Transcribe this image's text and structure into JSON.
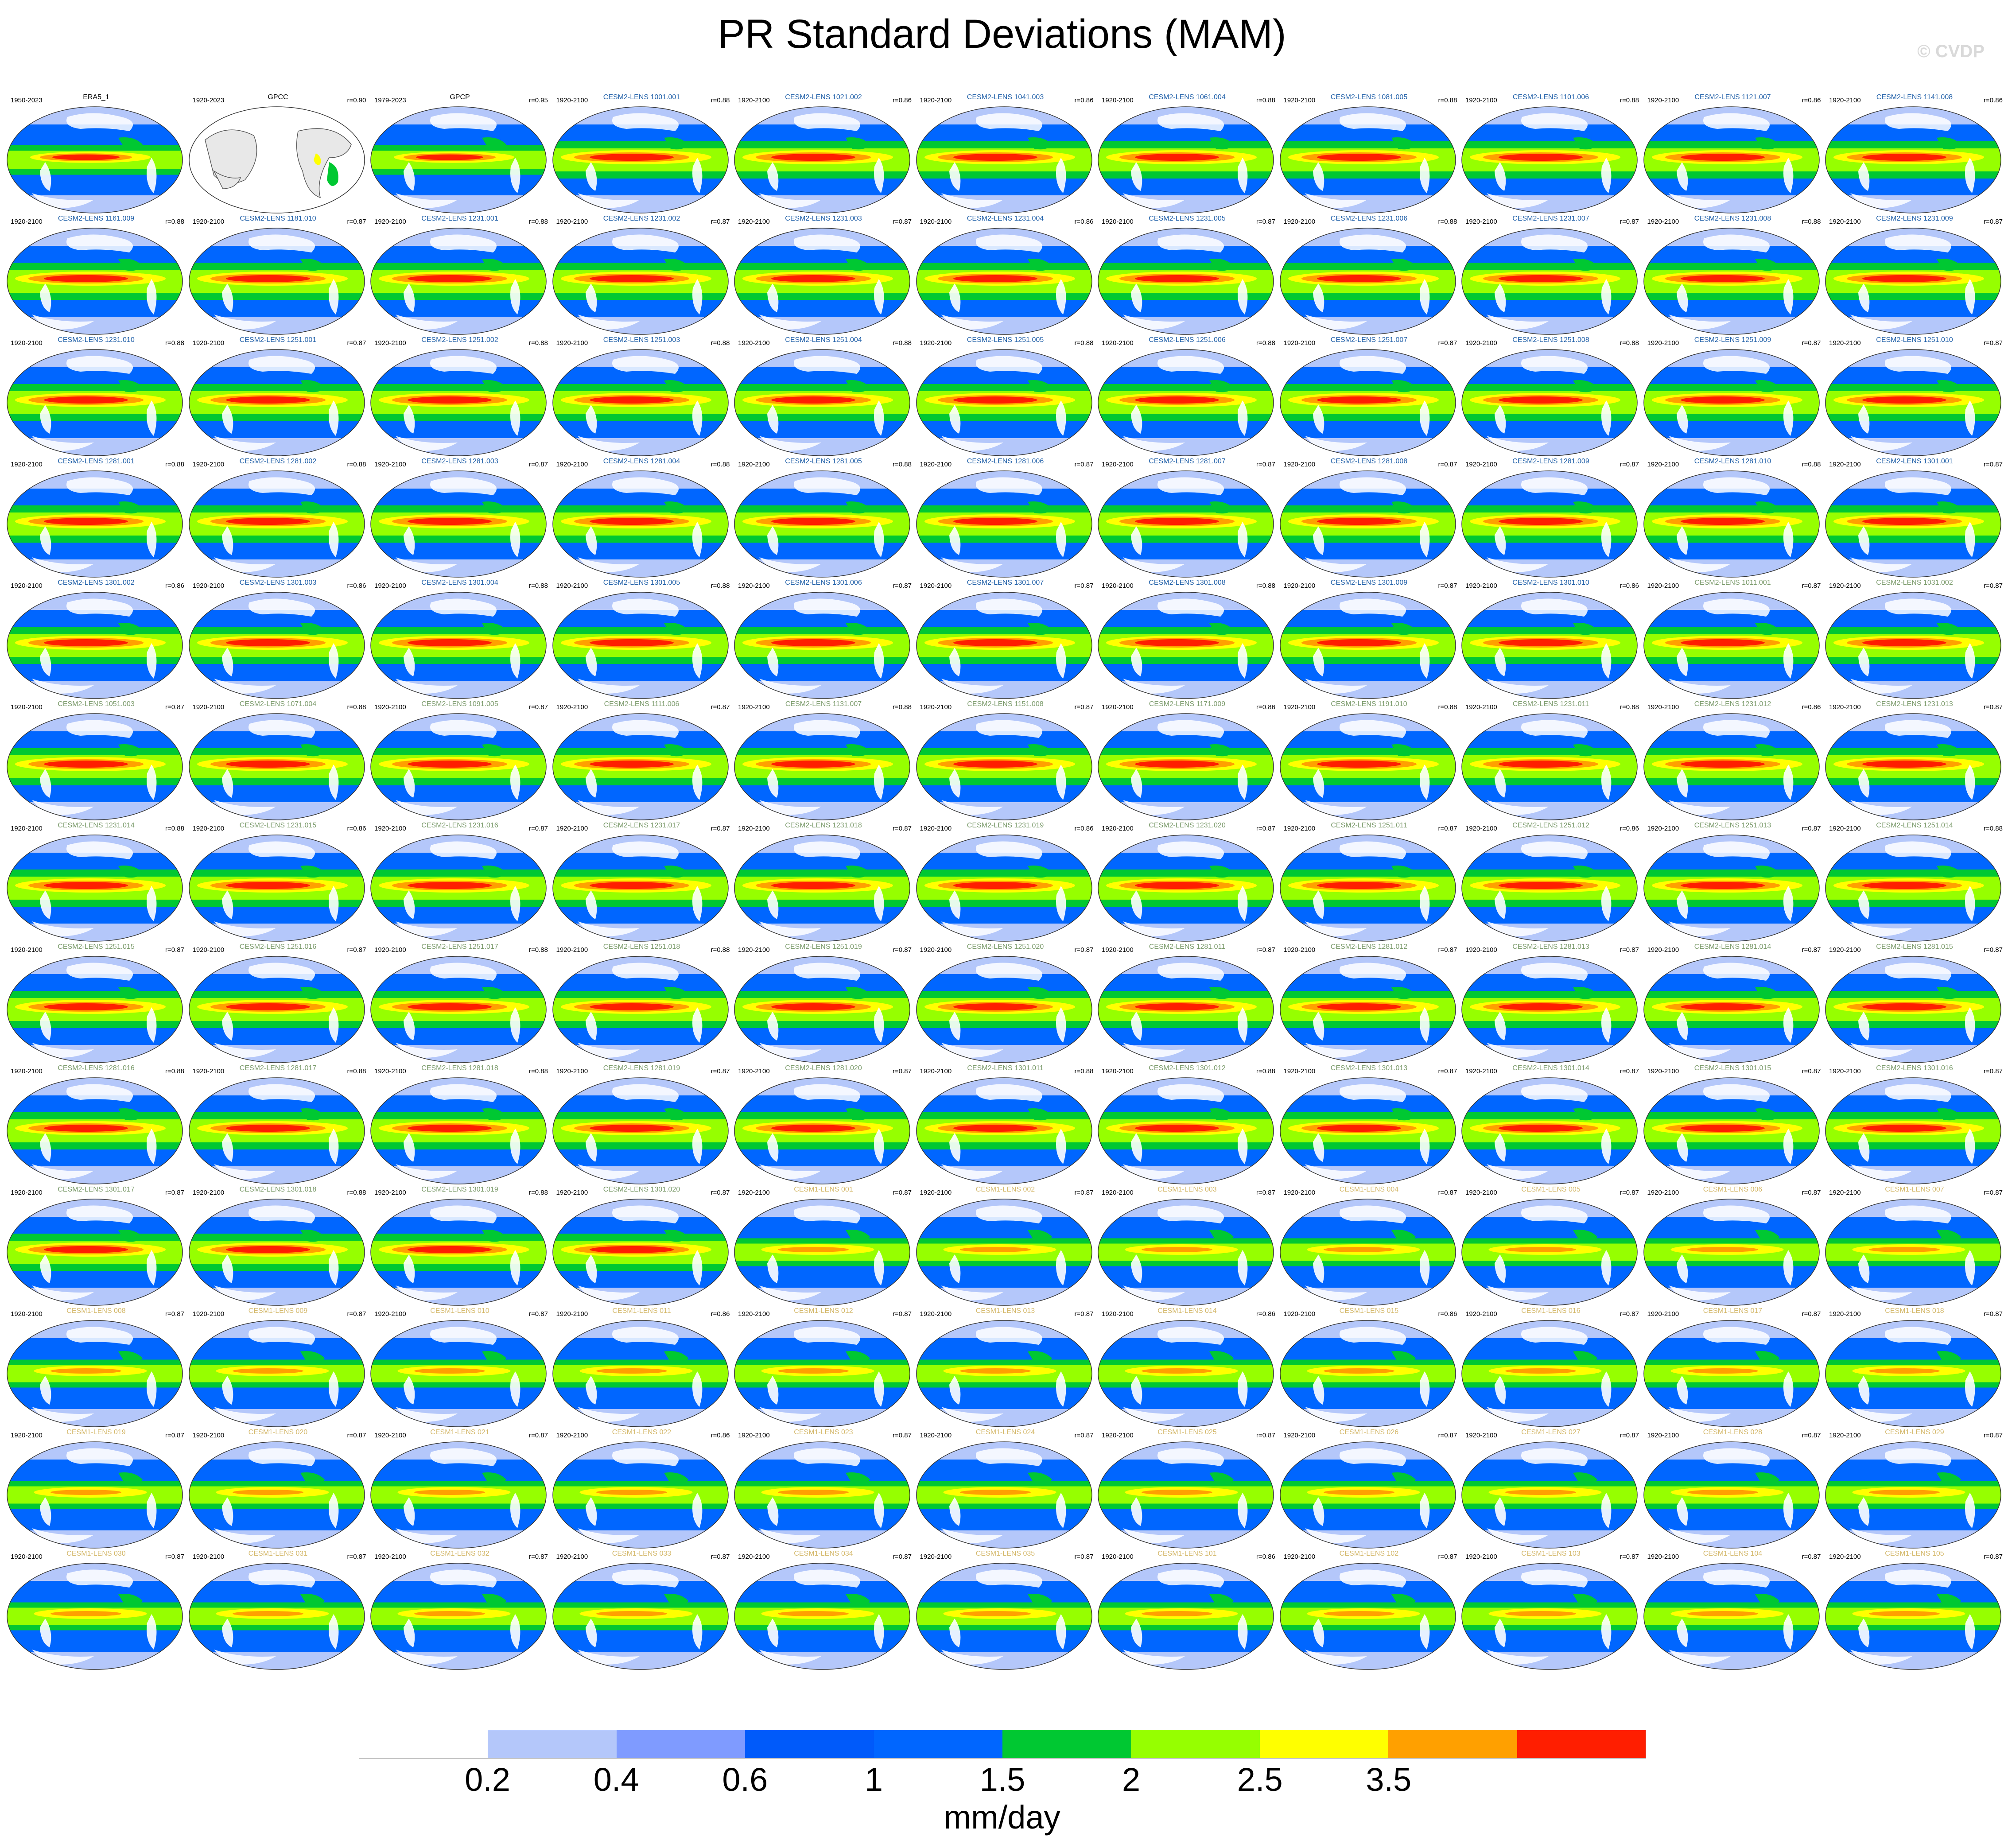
{
  "title": "PR Standard Deviations (MAM)",
  "watermark": "© CVDP",
  "colorbar": {
    "colors": [
      "#ffffff",
      "#b4c7fa",
      "#7f9bff",
      "#005afa",
      "#0066ff",
      "#00c832",
      "#96ff00",
      "#ffff00",
      "#ffa000",
      "#ff1e00"
    ],
    "ticks": [
      "0.2",
      "0.4",
      "0.6",
      "1",
      "1.5",
      "2",
      "2.5",
      "3.5"
    ],
    "units": "mm/day"
  },
  "map_colors": {
    "land": "#ffffff",
    "ocean_low": "#b4c7fa",
    "blue": "#0066ff",
    "green": "#00c832",
    "lime": "#96ff00",
    "yellow": "#ffff00",
    "orange": "#ffa000",
    "red": "#ff1e00",
    "gpcc_land": "#e8e8e8"
  },
  "panels": [
    {
      "name": "ERA5_1",
      "period": "1950-2023",
      "r": "",
      "style": "obs"
    },
    {
      "name": "GPCC",
      "period": "1920-2023",
      "r": "r=0.90",
      "style": "gpcc"
    },
    {
      "name": "GPCP",
      "period": "1979-2023",
      "r": "r=0.95",
      "style": "obs"
    },
    {
      "name": "CESM2-LENS 1001.001",
      "period": "1920-2100",
      "r": "r=0.88",
      "style": "c2"
    },
    {
      "name": "CESM2-LENS 1021.002",
      "period": "1920-2100",
      "r": "r=0.86",
      "style": "c2"
    },
    {
      "name": "CESM2-LENS 1041.003",
      "period": "1920-2100",
      "r": "r=0.86",
      "style": "c2"
    },
    {
      "name": "CESM2-LENS 1061.004",
      "period": "1920-2100",
      "r": "r=0.88",
      "style": "c2"
    },
    {
      "name": "CESM2-LENS 1081.005",
      "period": "1920-2100",
      "r": "r=0.88",
      "style": "c2"
    },
    {
      "name": "CESM2-LENS 1101.006",
      "period": "1920-2100",
      "r": "r=0.88",
      "style": "c2"
    },
    {
      "name": "CESM2-LENS 1121.007",
      "period": "1920-2100",
      "r": "r=0.86",
      "style": "c2"
    },
    {
      "name": "CESM2-LENS 1141.008",
      "period": "1920-2100",
      "r": "r=0.86",
      "style": "c2"
    },
    {
      "name": "CESM2-LENS 1161.009",
      "period": "1920-2100",
      "r": "r=0.88",
      "style": "c2"
    },
    {
      "name": "CESM2-LENS 1181.010",
      "period": "1920-2100",
      "r": "r=0.87",
      "style": "c2"
    },
    {
      "name": "CESM2-LENS 1231.001",
      "period": "1920-2100",
      "r": "r=0.88",
      "style": "c2"
    },
    {
      "name": "CESM2-LENS 1231.002",
      "period": "1920-2100",
      "r": "r=0.87",
      "style": "c2"
    },
    {
      "name": "CESM2-LENS 1231.003",
      "period": "1920-2100",
      "r": "r=0.87",
      "style": "c2"
    },
    {
      "name": "CESM2-LENS 1231.004",
      "period": "1920-2100",
      "r": "r=0.86",
      "style": "c2"
    },
    {
      "name": "CESM2-LENS 1231.005",
      "period": "1920-2100",
      "r": "r=0.87",
      "style": "c2"
    },
    {
      "name": "CESM2-LENS 1231.006",
      "period": "1920-2100",
      "r": "r=0.88",
      "style": "c2"
    },
    {
      "name": "CESM2-LENS 1231.007",
      "period": "1920-2100",
      "r": "r=0.87",
      "style": "c2"
    },
    {
      "name": "CESM2-LENS 1231.008",
      "period": "1920-2100",
      "r": "r=0.88",
      "style": "c2"
    },
    {
      "name": "CESM2-LENS 1231.009",
      "period": "1920-2100",
      "r": "r=0.87",
      "style": "c2"
    },
    {
      "name": "CESM2-LENS 1231.010",
      "period": "1920-2100",
      "r": "r=0.88",
      "style": "c2"
    },
    {
      "name": "CESM2-LENS 1251.001",
      "period": "1920-2100",
      "r": "r=0.87",
      "style": "c2"
    },
    {
      "name": "CESM2-LENS 1251.002",
      "period": "1920-2100",
      "r": "r=0.88",
      "style": "c2"
    },
    {
      "name": "CESM2-LENS 1251.003",
      "period": "1920-2100",
      "r": "r=0.88",
      "style": "c2"
    },
    {
      "name": "CESM2-LENS 1251.004",
      "period": "1920-2100",
      "r": "r=0.88",
      "style": "c2"
    },
    {
      "name": "CESM2-LENS 1251.005",
      "period": "1920-2100",
      "r": "r=0.88",
      "style": "c2"
    },
    {
      "name": "CESM2-LENS 1251.006",
      "period": "1920-2100",
      "r": "r=0.88",
      "style": "c2"
    },
    {
      "name": "CESM2-LENS 1251.007",
      "period": "1920-2100",
      "r": "r=0.87",
      "style": "c2"
    },
    {
      "name": "CESM2-LENS 1251.008",
      "period": "1920-2100",
      "r": "r=0.88",
      "style": "c2"
    },
    {
      "name": "CESM2-LENS 1251.009",
      "period": "1920-2100",
      "r": "r=0.87",
      "style": "c2"
    },
    {
      "name": "CESM2-LENS 1251.010",
      "period": "1920-2100",
      "r": "r=0.87",
      "style": "c2"
    },
    {
      "name": "CESM2-LENS 1281.001",
      "period": "1920-2100",
      "r": "r=0.88",
      "style": "c2"
    },
    {
      "name": "CESM2-LENS 1281.002",
      "period": "1920-2100",
      "r": "r=0.88",
      "style": "c2"
    },
    {
      "name": "CESM2-LENS 1281.003",
      "period": "1920-2100",
      "r": "r=0.87",
      "style": "c2"
    },
    {
      "name": "CESM2-LENS 1281.004",
      "period": "1920-2100",
      "r": "r=0.88",
      "style": "c2"
    },
    {
      "name": "CESM2-LENS 1281.005",
      "period": "1920-2100",
      "r": "r=0.88",
      "style": "c2"
    },
    {
      "name": "CESM2-LENS 1281.006",
      "period": "1920-2100",
      "r": "r=0.87",
      "style": "c2"
    },
    {
      "name": "CESM2-LENS 1281.007",
      "period": "1920-2100",
      "r": "r=0.87",
      "style": "c2"
    },
    {
      "name": "CESM2-LENS 1281.008",
      "period": "1920-2100",
      "r": "r=0.87",
      "style": "c2"
    },
    {
      "name": "CESM2-LENS 1281.009",
      "period": "1920-2100",
      "r": "r=0.87",
      "style": "c2"
    },
    {
      "name": "CESM2-LENS 1281.010",
      "period": "1920-2100",
      "r": "r=0.88",
      "style": "c2"
    },
    {
      "name": "CESM2-LENS 1301.001",
      "period": "1920-2100",
      "r": "r=0.87",
      "style": "c2"
    },
    {
      "name": "CESM2-LENS 1301.002",
      "period": "1920-2100",
      "r": "r=0.86",
      "style": "c2"
    },
    {
      "name": "CESM2-LENS 1301.003",
      "period": "1920-2100",
      "r": "r=0.86",
      "style": "c2"
    },
    {
      "name": "CESM2-LENS 1301.004",
      "period": "1920-2100",
      "r": "r=0.88",
      "style": "c2"
    },
    {
      "name": "CESM2-LENS 1301.005",
      "period": "1920-2100",
      "r": "r=0.88",
      "style": "c2"
    },
    {
      "name": "CESM2-LENS 1301.006",
      "period": "1920-2100",
      "r": "r=0.87",
      "style": "c2"
    },
    {
      "name": "CESM2-LENS 1301.007",
      "period": "1920-2100",
      "r": "r=0.87",
      "style": "c2"
    },
    {
      "name": "CESM2-LENS 1301.008",
      "period": "1920-2100",
      "r": "r=0.88",
      "style": "c2"
    },
    {
      "name": "CESM2-LENS 1301.009",
      "period": "1920-2100",
      "r": "r=0.87",
      "style": "c2"
    },
    {
      "name": "CESM2-LENS 1301.010",
      "period": "1920-2100",
      "r": "r=0.86",
      "style": "c2"
    },
    {
      "name": "CESM2-LENS 1011.001",
      "period": "1920-2100",
      "r": "r=0.87",
      "style": "c2s"
    },
    {
      "name": "CESM2-LENS 1031.002",
      "period": "1920-2100",
      "r": "r=0.87",
      "style": "c2s"
    },
    {
      "name": "CESM2-LENS 1051.003",
      "period": "1920-2100",
      "r": "r=0.87",
      "style": "c2s"
    },
    {
      "name": "CESM2-LENS 1071.004",
      "period": "1920-2100",
      "r": "r=0.88",
      "style": "c2s"
    },
    {
      "name": "CESM2-LENS 1091.005",
      "period": "1920-2100",
      "r": "r=0.87",
      "style": "c2s"
    },
    {
      "name": "CESM2-LENS 1111.006",
      "period": "1920-2100",
      "r": "r=0.87",
      "style": "c2s"
    },
    {
      "name": "CESM2-LENS 1131.007",
      "period": "1920-2100",
      "r": "r=0.88",
      "style": "c2s"
    },
    {
      "name": "CESM2-LENS 1151.008",
      "period": "1920-2100",
      "r": "r=0.87",
      "style": "c2s"
    },
    {
      "name": "CESM2-LENS 1171.009",
      "period": "1920-2100",
      "r": "r=0.86",
      "style": "c2s"
    },
    {
      "name": "CESM2-LENS 1191.010",
      "period": "1920-2100",
      "r": "r=0.88",
      "style": "c2s"
    },
    {
      "name": "CESM2-LENS 1231.011",
      "period": "1920-2100",
      "r": "r=0.88",
      "style": "c2s"
    },
    {
      "name": "CESM2-LENS 1231.012",
      "period": "1920-2100",
      "r": "r=0.86",
      "style": "c2s"
    },
    {
      "name": "CESM2-LENS 1231.013",
      "period": "1920-2100",
      "r": "r=0.87",
      "style": "c2s"
    },
    {
      "name": "CESM2-LENS 1231.014",
      "period": "1920-2100",
      "r": "r=0.88",
      "style": "c2s"
    },
    {
      "name": "CESM2-LENS 1231.015",
      "period": "1920-2100",
      "r": "r=0.86",
      "style": "c2s"
    },
    {
      "name": "CESM2-LENS 1231.016",
      "period": "1920-2100",
      "r": "r=0.87",
      "style": "c2s"
    },
    {
      "name": "CESM2-LENS 1231.017",
      "period": "1920-2100",
      "r": "r=0.87",
      "style": "c2s"
    },
    {
      "name": "CESM2-LENS 1231.018",
      "period": "1920-2100",
      "r": "r=0.87",
      "style": "c2s"
    },
    {
      "name": "CESM2-LENS 1231.019",
      "period": "1920-2100",
      "r": "r=0.86",
      "style": "c2s"
    },
    {
      "name": "CESM2-LENS 1231.020",
      "period": "1920-2100",
      "r": "r=0.87",
      "style": "c2s"
    },
    {
      "name": "CESM2-LENS 1251.011",
      "period": "1920-2100",
      "r": "r=0.87",
      "style": "c2s"
    },
    {
      "name": "CESM2-LENS 1251.012",
      "period": "1920-2100",
      "r": "r=0.86",
      "style": "c2s"
    },
    {
      "name": "CESM2-LENS 1251.013",
      "period": "1920-2100",
      "r": "r=0.87",
      "style": "c2s"
    },
    {
      "name": "CESM2-LENS 1251.014",
      "period": "1920-2100",
      "r": "r=0.88",
      "style": "c2s"
    },
    {
      "name": "CESM2-LENS 1251.015",
      "period": "1920-2100",
      "r": "r=0.87",
      "style": "c2s"
    },
    {
      "name": "CESM2-LENS 1251.016",
      "period": "1920-2100",
      "r": "r=0.87",
      "style": "c2s"
    },
    {
      "name": "CESM2-LENS 1251.017",
      "period": "1920-2100",
      "r": "r=0.88",
      "style": "c2s"
    },
    {
      "name": "CESM2-LENS 1251.018",
      "period": "1920-2100",
      "r": "r=0.88",
      "style": "c2s"
    },
    {
      "name": "CESM2-LENS 1251.019",
      "period": "1920-2100",
      "r": "r=0.87",
      "style": "c2s"
    },
    {
      "name": "CESM2-LENS 1251.020",
      "period": "1920-2100",
      "r": "r=0.87",
      "style": "c2s"
    },
    {
      "name": "CESM2-LENS 1281.011",
      "period": "1920-2100",
      "r": "r=0.87",
      "style": "c2s"
    },
    {
      "name": "CESM2-LENS 1281.012",
      "period": "1920-2100",
      "r": "r=0.87",
      "style": "c2s"
    },
    {
      "name": "CESM2-LENS 1281.013",
      "period": "1920-2100",
      "r": "r=0.87",
      "style": "c2s"
    },
    {
      "name": "CESM2-LENS 1281.014",
      "period": "1920-2100",
      "r": "r=0.87",
      "style": "c2s"
    },
    {
      "name": "CESM2-LENS 1281.015",
      "period": "1920-2100",
      "r": "r=0.87",
      "style": "c2s"
    },
    {
      "name": "CESM2-LENS 1281.016",
      "period": "1920-2100",
      "r": "r=0.88",
      "style": "c2s"
    },
    {
      "name": "CESM2-LENS 1281.017",
      "period": "1920-2100",
      "r": "r=0.88",
      "style": "c2s"
    },
    {
      "name": "CESM2-LENS 1281.018",
      "period": "1920-2100",
      "r": "r=0.88",
      "style": "c2s"
    },
    {
      "name": "CESM2-LENS 1281.019",
      "period": "1920-2100",
      "r": "r=0.87",
      "style": "c2s"
    },
    {
      "name": "CESM2-LENS 1281.020",
      "period": "1920-2100",
      "r": "r=0.87",
      "style": "c2s"
    },
    {
      "name": "CESM2-LENS 1301.011",
      "period": "1920-2100",
      "r": "r=0.88",
      "style": "c2s"
    },
    {
      "name": "CESM2-LENS 1301.012",
      "period": "1920-2100",
      "r": "r=0.88",
      "style": "c2s"
    },
    {
      "name": "CESM2-LENS 1301.013",
      "period": "1920-2100",
      "r": "r=0.87",
      "style": "c2s"
    },
    {
      "name": "CESM2-LENS 1301.014",
      "period": "1920-2100",
      "r": "r=0.87",
      "style": "c2s"
    },
    {
      "name": "CESM2-LENS 1301.015",
      "period": "1920-2100",
      "r": "r=0.87",
      "style": "c2s"
    },
    {
      "name": "CESM2-LENS 1301.016",
      "period": "1920-2100",
      "r": "r=0.87",
      "style": "c2s"
    },
    {
      "name": "CESM2-LENS 1301.017",
      "period": "1920-2100",
      "r": "r=0.87",
      "style": "c2s"
    },
    {
      "name": "CESM2-LENS 1301.018",
      "period": "1920-2100",
      "r": "r=0.88",
      "style": "c2s"
    },
    {
      "name": "CESM2-LENS 1301.019",
      "period": "1920-2100",
      "r": "r=0.88",
      "style": "c2s"
    },
    {
      "name": "CESM2-LENS 1301.020",
      "period": "1920-2100",
      "r": "r=0.87",
      "style": "c2s"
    },
    {
      "name": "CESM1-LENS 001",
      "period": "1920-2100",
      "r": "r=0.87",
      "style": "c1"
    },
    {
      "name": "CESM1-LENS 002",
      "period": "1920-2100",
      "r": "r=0.87",
      "style": "c1"
    },
    {
      "name": "CESM1-LENS 003",
      "period": "1920-2100",
      "r": "r=0.87",
      "style": "c1"
    },
    {
      "name": "CESM1-LENS 004",
      "period": "1920-2100",
      "r": "r=0.87",
      "style": "c1"
    },
    {
      "name": "CESM1-LENS 005",
      "period": "1920-2100",
      "r": "r=0.87",
      "style": "c1"
    },
    {
      "name": "CESM1-LENS 006",
      "period": "1920-2100",
      "r": "r=0.87",
      "style": "c1"
    },
    {
      "name": "CESM1-LENS 007",
      "period": "1920-2100",
      "r": "r=0.87",
      "style": "c1"
    },
    {
      "name": "CESM1-LENS 008",
      "period": "1920-2100",
      "r": "r=0.87",
      "style": "c1"
    },
    {
      "name": "CESM1-LENS 009",
      "period": "1920-2100",
      "r": "r=0.87",
      "style": "c1"
    },
    {
      "name": "CESM1-LENS 010",
      "period": "1920-2100",
      "r": "r=0.87",
      "style": "c1"
    },
    {
      "name": "CESM1-LENS 011",
      "period": "1920-2100",
      "r": "r=0.86",
      "style": "c1"
    },
    {
      "name": "CESM1-LENS 012",
      "period": "1920-2100",
      "r": "r=0.87",
      "style": "c1"
    },
    {
      "name": "CESM1-LENS 013",
      "period": "1920-2100",
      "r": "r=0.87",
      "style": "c1"
    },
    {
      "name": "CESM1-LENS 014",
      "period": "1920-2100",
      "r": "r=0.86",
      "style": "c1"
    },
    {
      "name": "CESM1-LENS 015",
      "period": "1920-2100",
      "r": "r=0.86",
      "style": "c1"
    },
    {
      "name": "CESM1-LENS 016",
      "period": "1920-2100",
      "r": "r=0.87",
      "style": "c1"
    },
    {
      "name": "CESM1-LENS 017",
      "period": "1920-2100",
      "r": "r=0.87",
      "style": "c1"
    },
    {
      "name": "CESM1-LENS 018",
      "period": "1920-2100",
      "r": "r=0.87",
      "style": "c1"
    },
    {
      "name": "CESM1-LENS 019",
      "period": "1920-2100",
      "r": "r=0.87",
      "style": "c1"
    },
    {
      "name": "CESM1-LENS 020",
      "period": "1920-2100",
      "r": "r=0.87",
      "style": "c1"
    },
    {
      "name": "CESM1-LENS 021",
      "period": "1920-2100",
      "r": "r=0.87",
      "style": "c1"
    },
    {
      "name": "CESM1-LENS 022",
      "period": "1920-2100",
      "r": "r=0.86",
      "style": "c1"
    },
    {
      "name": "CESM1-LENS 023",
      "period": "1920-2100",
      "r": "r=0.87",
      "style": "c1"
    },
    {
      "name": "CESM1-LENS 024",
      "period": "1920-2100",
      "r": "r=0.87",
      "style": "c1"
    },
    {
      "name": "CESM1-LENS 025",
      "period": "1920-2100",
      "r": "r=0.87",
      "style": "c1"
    },
    {
      "name": "CESM1-LENS 026",
      "period": "1920-2100",
      "r": "r=0.87",
      "style": "c1"
    },
    {
      "name": "CESM1-LENS 027",
      "period": "1920-2100",
      "r": "r=0.87",
      "style": "c1"
    },
    {
      "name": "CESM1-LENS 028",
      "period": "1920-2100",
      "r": "r=0.87",
      "style": "c1"
    },
    {
      "name": "CESM1-LENS 029",
      "period": "1920-2100",
      "r": "r=0.87",
      "style": "c1"
    },
    {
      "name": "CESM1-LENS 030",
      "period": "1920-2100",
      "r": "r=0.87",
      "style": "c1"
    },
    {
      "name": "CESM1-LENS 031",
      "period": "1920-2100",
      "r": "r=0.87",
      "style": "c1"
    },
    {
      "name": "CESM1-LENS 032",
      "period": "1920-2100",
      "r": "r=0.87",
      "style": "c1"
    },
    {
      "name": "CESM1-LENS 033",
      "period": "1920-2100",
      "r": "r=0.87",
      "style": "c1"
    },
    {
      "name": "CESM1-LENS 034",
      "period": "1920-2100",
      "r": "r=0.87",
      "style": "c1"
    },
    {
      "name": "CESM1-LENS 035",
      "period": "1920-2100",
      "r": "r=0.87",
      "style": "c1"
    },
    {
      "name": "CESM1-LENS 101",
      "period": "1920-2100",
      "r": "r=0.86",
      "style": "c1"
    },
    {
      "name": "CESM1-LENS 102",
      "period": "1920-2100",
      "r": "r=0.87",
      "style": "c1"
    },
    {
      "name": "CESM1-LENS 103",
      "period": "1920-2100",
      "r": "r=0.87",
      "style": "c1"
    },
    {
      "name": "CESM1-LENS 104",
      "period": "1920-2100",
      "r": "r=0.87",
      "style": "c1"
    },
    {
      "name": "CESM1-LENS 105",
      "period": "1920-2100",
      "r": "r=0.87",
      "style": "c1"
    }
  ],
  "name_colors": {
    "obs": "#000000",
    "gpcc": "#000000",
    "c2": "#1f5fa8",
    "c2s": "#7a9a6a",
    "c1": "#d4b86a"
  }
}
